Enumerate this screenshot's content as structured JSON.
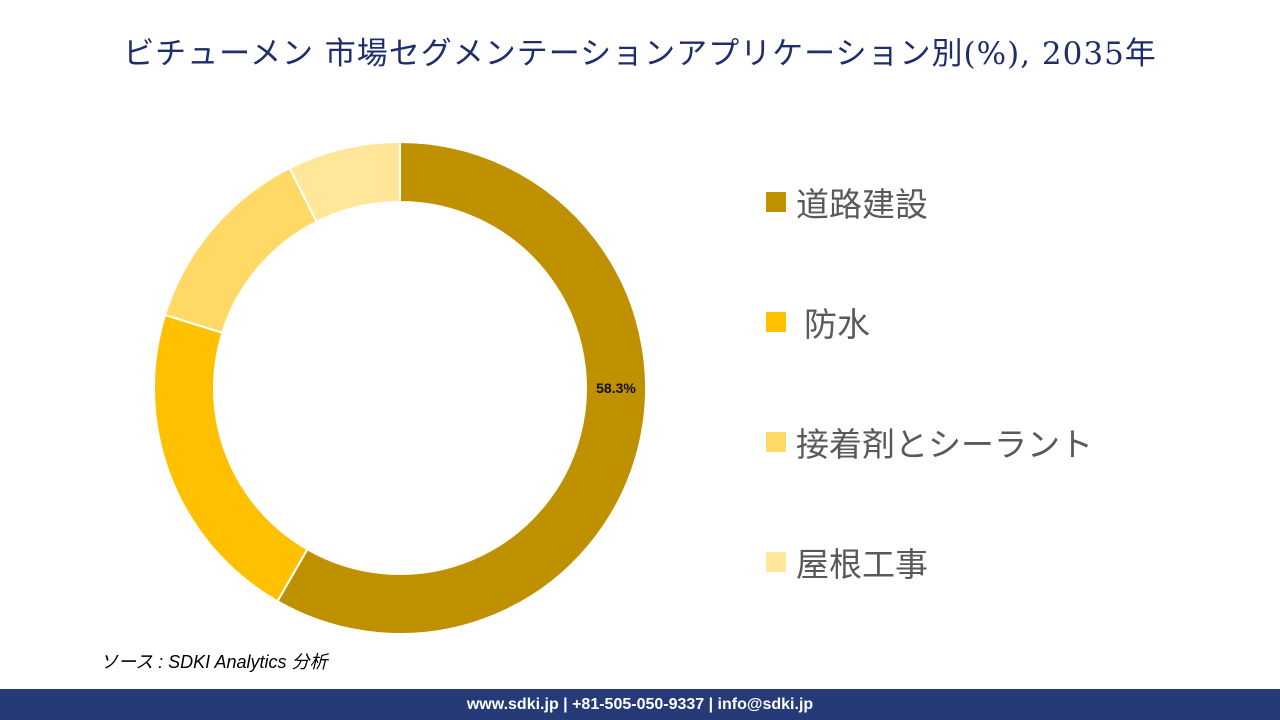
{
  "title": "ビチューメン 市場セグメンテーションアプリケーション別(%), 2035年",
  "chart_data": {
    "type": "pie",
    "variant": "donut",
    "title": "ビチューメン 市場セグメンテーションアプリケーション別(%), 2035年",
    "categories": [
      "道路建設",
      "防水",
      "接着剤とシーラント",
      "屋根工事"
    ],
    "values": [
      58.3,
      21.5,
      12.8,
      7.4
    ],
    "data_labels": [
      "58.3%",
      "",
      "",
      ""
    ],
    "colors": [
      "#BF9000",
      "#FFC000",
      "#FFD966",
      "#FFE699"
    ],
    "legend_position": "right",
    "start_angle": "top, clockwise"
  },
  "source": "ソース : SDKI Analytics 分析",
  "footer": "www.sdki.jp | +81-505-050-9337 | info@sdki.jp"
}
